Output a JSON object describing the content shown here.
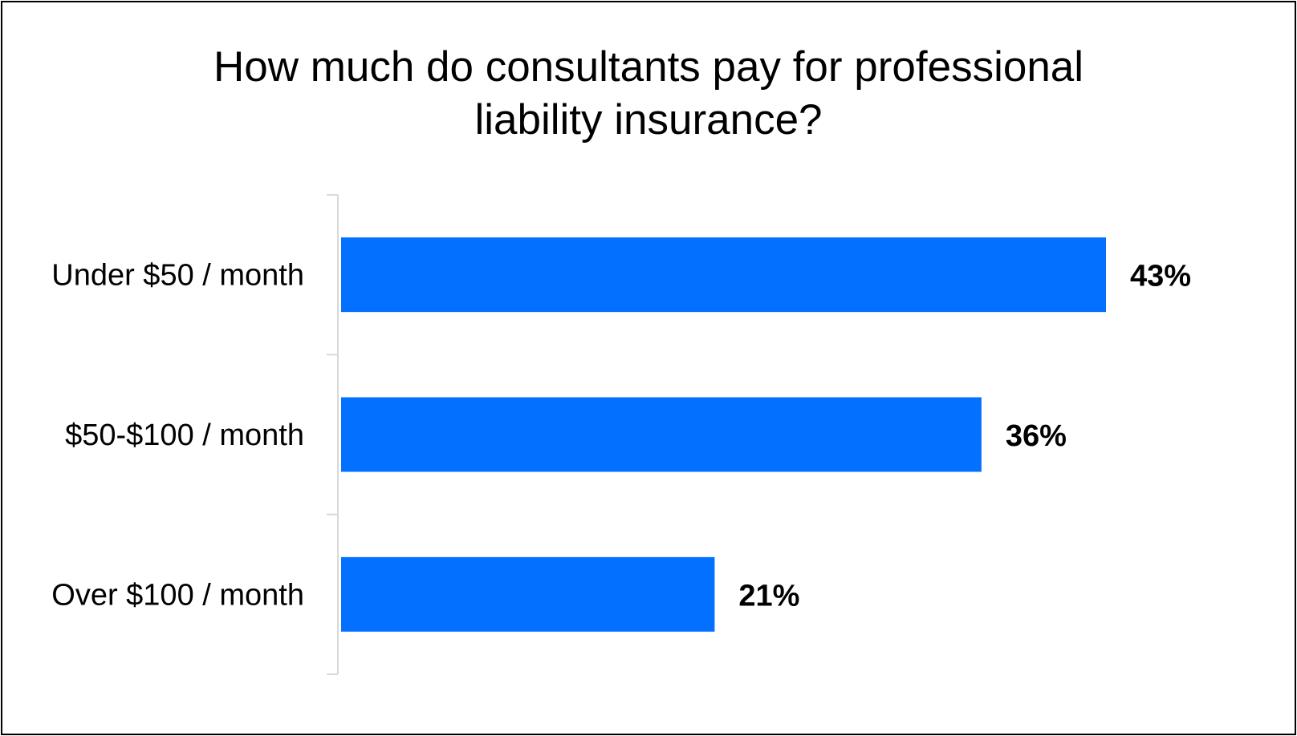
{
  "chart_data": {
    "type": "bar",
    "orientation": "horizontal",
    "title_lines": [
      "How much do consultants pay for professional",
      "liability insurance?"
    ],
    "categories": [
      "Under $50 / month",
      "$50-$100 / month",
      "Over $100 / month"
    ],
    "values": [
      43,
      36,
      21
    ],
    "value_labels": [
      "43%",
      "36%",
      "21%"
    ],
    "xlim": [
      0,
      43
    ],
    "grid": false,
    "legend": "none",
    "bar_color": "#0370FF",
    "axis_color": "#D9D9D9"
  }
}
